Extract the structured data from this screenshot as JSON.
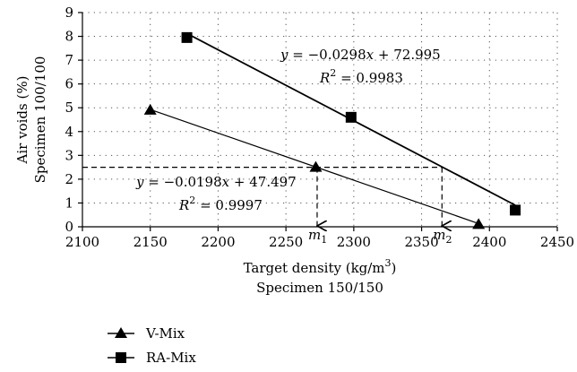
{
  "chart_data": {
    "type": "scatter",
    "x_label": {
      "line1": "Target density (kg/m",
      "sup": "3",
      "line1_end": ")",
      "line2": "Specimen 150/150"
    },
    "y_label": {
      "line1": "Air voids (%)",
      "line2": "Specimen 100/100"
    },
    "xlim": [
      2100,
      2450
    ],
    "ylim": [
      0,
      9
    ],
    "x_ticks": [
      2100,
      2150,
      2200,
      2250,
      2300,
      2350,
      2400,
      2450
    ],
    "y_ticks": [
      0,
      1,
      2,
      3,
      4,
      5,
      6,
      7,
      8,
      9
    ],
    "grid": "dotted",
    "series": [
      {
        "name": "V-Mix",
        "marker": "triangle",
        "points": [
          {
            "x": 2150,
            "y": 4.9
          },
          {
            "x": 2272,
            "y": 2.5
          },
          {
            "x": 2392,
            "y": 0.1
          }
        ],
        "trendline": {
          "slope": -0.0198,
          "intercept": 47.497,
          "x_range": [
            2150,
            2392
          ]
        },
        "equation": {
          "y": "y",
          "eq": " = −0.0198",
          "x": "x",
          "rest": " + 47.497"
        },
        "r2": {
          "r": "R",
          "sup": "2",
          "rest": " = 0.9997"
        }
      },
      {
        "name": "RA-Mix",
        "marker": "square",
        "points": [
          {
            "x": 2177,
            "y": 7.95
          },
          {
            "x": 2298,
            "y": 4.6
          },
          {
            "x": 2419,
            "y": 0.7
          }
        ],
        "trendline": {
          "slope": -0.0298,
          "intercept": 72.995,
          "x_range": [
            2177,
            2419
          ]
        },
        "equation": {
          "y": "y",
          "eq": " = −0.0298",
          "x": "x",
          "rest": " + 72.995"
        },
        "r2": {
          "r": "R",
          "sup": "2",
          "rest": " = 0.9983"
        }
      }
    ],
    "reference": {
      "y": 2.5,
      "markers": [
        {
          "label": "m",
          "sub": "1",
          "x": 2273
        },
        {
          "label": "m",
          "sub": "2",
          "x": 2365
        }
      ]
    },
    "legend": {
      "placement": "bottom-left"
    }
  }
}
